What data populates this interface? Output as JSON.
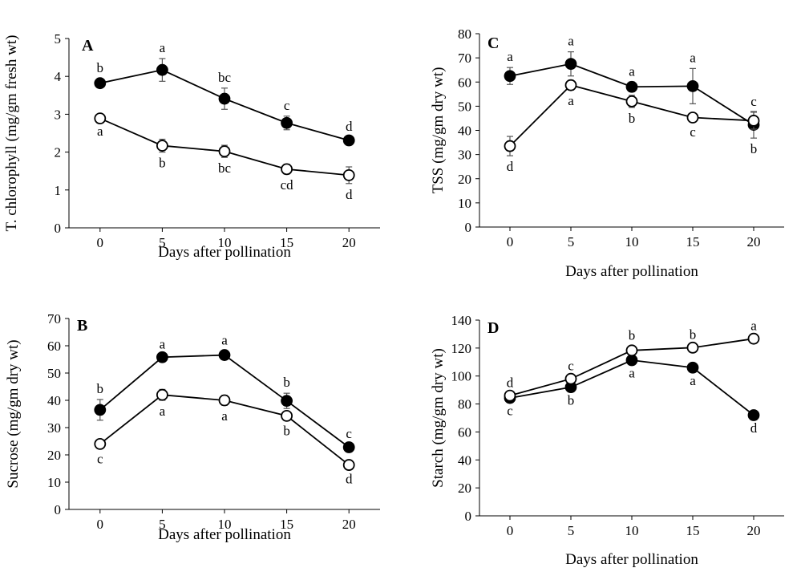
{
  "chart_data": [
    {
      "panel": "A",
      "type": "line",
      "xlabel": "Days after pollination",
      "ylabel": "T. chlorophyll (mg/gm fresh wt)",
      "x": [
        0,
        5,
        10,
        15,
        20
      ],
      "xlim": [
        -2.5,
        22.5
      ],
      "ylim": [
        0,
        5
      ],
      "yticks": [
        0,
        1,
        2,
        3,
        4,
        5
      ],
      "grid": false,
      "series": [
        {
          "marker": "filled-circle",
          "color": "#000000",
          "values": [
            3.82,
            4.17,
            3.41,
            2.77,
            2.31
          ],
          "errors": [
            0.12,
            0.3,
            0.28,
            0.18,
            0.08
          ],
          "labels": [
            "b",
            "a",
            "bc",
            "c",
            "d"
          ],
          "label_position": "above"
        },
        {
          "marker": "open-circle",
          "color": "#000000",
          "values": [
            2.89,
            2.17,
            2.02,
            1.55,
            1.39
          ],
          "errors": [
            0.05,
            0.17,
            0.16,
            0.13,
            0.22
          ],
          "labels": [
            "a",
            "b",
            "bc",
            "cd",
            "d"
          ],
          "label_position": "below"
        }
      ]
    },
    {
      "panel": "B",
      "type": "line",
      "xlabel": "Days after pollination",
      "ylabel": "Sucrose (mg/gm dry wt)",
      "x": [
        0,
        5,
        10,
        15,
        20
      ],
      "xlim": [
        -2.5,
        22.5
      ],
      "ylim": [
        0,
        70
      ],
      "yticks": [
        0,
        10,
        20,
        30,
        40,
        50,
        60,
        70
      ],
      "grid": false,
      "series": [
        {
          "marker": "filled-circle",
          "color": "#000000",
          "values": [
            36.5,
            55.8,
            56.6,
            39.8,
            22.8
          ],
          "errors": [
            3.8,
            0.8,
            1.5,
            2.8,
            1.0
          ],
          "labels": [
            "b",
            "a",
            "a",
            "b",
            "c"
          ],
          "label_position": "above"
        },
        {
          "marker": "open-circle",
          "color": "#000000",
          "values": [
            24.0,
            42.0,
            40.0,
            34.3,
            16.3
          ],
          "errors": [
            1.5,
            2.0,
            1.8,
            1.5,
            1.2
          ],
          "labels": [
            "c",
            "a",
            "a",
            "b",
            "d"
          ],
          "label_position": "below"
        }
      ]
    },
    {
      "panel": "C",
      "type": "line",
      "xlabel": "Days after pollination",
      "ylabel": "TSS (mg/gm dry wt)",
      "x": [
        0,
        5,
        10,
        15,
        20
      ],
      "xlim": [
        -2.5,
        22.5
      ],
      "ylim": [
        0,
        80
      ],
      "yticks": [
        0,
        10,
        20,
        30,
        40,
        50,
        60,
        70,
        80
      ],
      "grid": false,
      "series": [
        {
          "marker": "filled-circle",
          "color": "#000000",
          "values": [
            62.5,
            67.5,
            58.0,
            58.3,
            42.3
          ],
          "errors": [
            3.5,
            5.0,
            2.0,
            7.3,
            5.5
          ],
          "labels": [
            "a",
            "a",
            "a",
            "a",
            "b"
          ],
          "label_position": "mixed"
        },
        {
          "marker": "open-circle",
          "color": "#000000",
          "values": [
            33.5,
            58.7,
            52.0,
            45.3,
            44.0
          ],
          "errors": [
            4.0,
            2.0,
            2.5,
            1.5,
            3.5
          ],
          "labels": [
            "d",
            "a",
            "b",
            "c",
            "c"
          ],
          "label_position": "mixed"
        }
      ]
    },
    {
      "panel": "D",
      "type": "line",
      "xlabel": "Days after pollination",
      "ylabel": "Starch (mg/gm dry wt)",
      "x": [
        0,
        5,
        10,
        15,
        20
      ],
      "xlim": [
        -2.5,
        22.5
      ],
      "ylim": [
        0,
        140
      ],
      "yticks": [
        0,
        20,
        40,
        60,
        80,
        100,
        120,
        140
      ],
      "grid": false,
      "series": [
        {
          "marker": "filled-circle",
          "color": "#000000",
          "values": [
            84.3,
            92.0,
            111.3,
            106.0,
            72.0
          ],
          "errors": [
            1.5,
            1.5,
            1.5,
            1.5,
            1.5
          ],
          "labels": [
            "c",
            "b",
            "a",
            "a",
            "d"
          ],
          "label_position": "below"
        },
        {
          "marker": "open-circle",
          "color": "#000000",
          "values": [
            86.0,
            98.0,
            118.3,
            120.3,
            126.7
          ],
          "errors": [
            1.5,
            1.5,
            3.0,
            1.5,
            1.5
          ],
          "labels": [
            "d",
            "c",
            "b",
            "b",
            "a"
          ],
          "label_position": "above"
        }
      ]
    }
  ]
}
